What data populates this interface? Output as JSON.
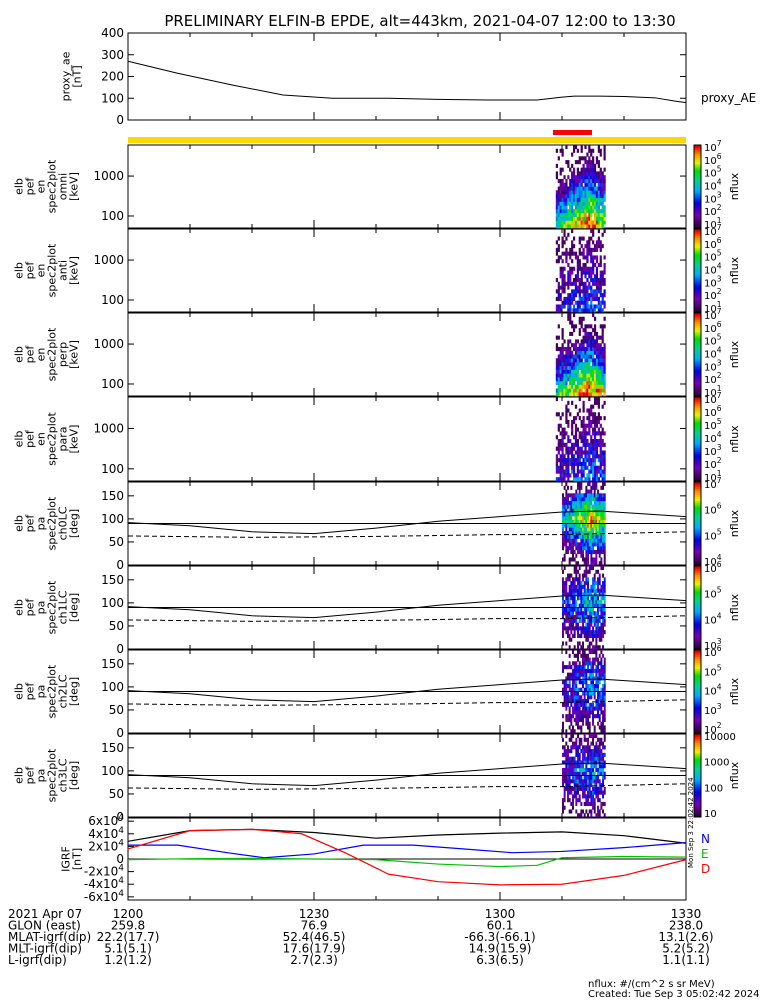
{
  "title": "PRELIMINARY ELFIN-B EPDE, alt=443km, 2021-04-07 12:00 to 13:30",
  "time_ticks": [
    "1200",
    "1230",
    "1300",
    "1330"
  ],
  "ephemeris": {
    "rows": [
      {
        "label": "2021 Apr 07",
        "values": [
          "1200",
          "1230",
          "1300",
          "1330"
        ]
      },
      {
        "label": "GLON (east)",
        "values": [
          "259.8",
          "76.9",
          "60.1",
          "238.0"
        ]
      },
      {
        "label": "MLAT-igrf(dip)",
        "values": [
          "22.2(17.7)",
          "52.4(46.5)",
          "-66.3(-66.1)",
          "13.1(2.6)"
        ]
      },
      {
        "label": "MLT-igrf(dip)",
        "values": [
          "5.1(5.1)",
          "17.6(17.9)",
          "14.9(15.9)",
          "5.2(5.2)"
        ]
      },
      {
        "label": "L-igrf(dip)",
        "values": [
          "1.2(1.2)",
          "2.7(2.3)",
          "6.3(6.5)",
          "1.1(1.1)"
        ]
      }
    ]
  },
  "footer": {
    "units": "nflux: #/(cm^2 s sr MeV)",
    "created": "Created: Tue Sep  3 05:02:42 2024"
  },
  "side_stamp": "Mon Sep  3 22:02:42 2024",
  "colors": {
    "orbit_bar": "#FFD700",
    "science_bar": "#FF0000",
    "igrf_total": "#000000",
    "igrf_N": "#0000FF",
    "igrf_E": "#00C000",
    "igrf_D": "#FF0000"
  },
  "chart_data": [
    {
      "id": "proxy_ae",
      "type": "line",
      "ylabel": [
        "proxy_ae",
        "[nT]"
      ],
      "yticks": [
        0,
        100,
        200,
        300,
        400
      ],
      "ylim": [
        0,
        400
      ],
      "legend": "proxy_AE",
      "series": [
        {
          "x": [
            0,
            8,
            17,
            25,
            33,
            42,
            50,
            58,
            66,
            70,
            72,
            76,
            80,
            85,
            88,
            90
          ],
          "y": [
            270,
            215,
            160,
            115,
            100,
            100,
            95,
            92,
            92,
            105,
            110,
            110,
            108,
            102,
            88,
            80
          ]
        }
      ]
    },
    {
      "id": "en_omni",
      "type": "heatmap",
      "ylabel": [
        "elb",
        "pef",
        "en",
        "spec2plot",
        "omni",
        "[keV]"
      ],
      "yticks": [
        100,
        1000
      ],
      "log": true,
      "colorbar": {
        "ticks": [
          "10^1",
          "10^2",
          "10^3",
          "10^4",
          "10^5",
          "10^6",
          "10^7"
        ],
        "label": "nflux"
      },
      "active": [
        69,
        77
      ],
      "intensity": 1.0
    },
    {
      "id": "en_anti",
      "type": "heatmap",
      "ylabel": [
        "elb",
        "pef",
        "en",
        "spec2plot",
        "anti",
        "[keV]"
      ],
      "yticks": [
        100,
        1000
      ],
      "log": true,
      "colorbar": {
        "ticks": [
          "10^1",
          "10^2",
          "10^3",
          "10^4",
          "10^5",
          "10^6",
          "10^7"
        ],
        "label": "nflux"
      },
      "active": [
        69,
        77
      ],
      "intensity": 0.35
    },
    {
      "id": "en_perp",
      "type": "heatmap",
      "ylabel": [
        "elb",
        "pef",
        "en",
        "spec2plot",
        "perp",
        "[keV]"
      ],
      "yticks": [
        100,
        1000
      ],
      "log": true,
      "colorbar": {
        "ticks": [
          "10^1",
          "10^2",
          "10^3",
          "10^4",
          "10^5",
          "10^6",
          "10^7"
        ],
        "label": "nflux"
      },
      "active": [
        69,
        77
      ],
      "intensity": 1.0
    },
    {
      "id": "en_para",
      "type": "heatmap",
      "ylabel": [
        "elb",
        "pef",
        "en",
        "spec2plot",
        "para",
        "[keV]"
      ],
      "yticks": [
        100,
        1000
      ],
      "log": true,
      "colorbar": {
        "ticks": [
          "10^1",
          "10^2",
          "10^3",
          "10^4",
          "10^5",
          "10^6",
          "10^7"
        ],
        "label": "nflux"
      },
      "active": [
        69,
        77
      ],
      "intensity": 0.4
    },
    {
      "id": "pa_ch0",
      "type": "heatmap",
      "ylabel": [
        "elb",
        "pef",
        "pa",
        "spec2plot",
        "ch0LC",
        "[deg]"
      ],
      "yticks": [
        0,
        50,
        100,
        150
      ],
      "ylim": [
        0,
        180
      ],
      "colorbar": {
        "ticks": [
          "10^4",
          "10^5",
          "10^6",
          "10^7"
        ],
        "label": "nflux"
      },
      "active": [
        70,
        77
      ],
      "intensity": 1.0,
      "lc_solid": true
    },
    {
      "id": "pa_ch1",
      "type": "heatmap",
      "ylabel": [
        "elb",
        "pef",
        "pa",
        "spec2plot",
        "ch1LC",
        "[deg]"
      ],
      "yticks": [
        0,
        50,
        100,
        150
      ],
      "ylim": [
        0,
        180
      ],
      "colorbar": {
        "ticks": [
          "10^3",
          "10^4",
          "10^5",
          "10^6"
        ],
        "label": "nflux"
      },
      "active": [
        70,
        77
      ],
      "intensity": 0.6,
      "lc_solid": true
    },
    {
      "id": "pa_ch2",
      "type": "heatmap",
      "ylabel": [
        "elb",
        "pef",
        "pa",
        "spec2plot",
        "ch2LC",
        "[deg]"
      ],
      "yticks": [
        0,
        50,
        100,
        150
      ],
      "ylim": [
        0,
        180
      ],
      "colorbar": {
        "ticks": [
          "10^2",
          "10^3",
          "10^4",
          "10^5",
          "10^6"
        ],
        "label": "nflux"
      },
      "active": [
        70,
        77
      ],
      "intensity": 0.5,
      "lc_solid": true
    },
    {
      "id": "pa_ch3",
      "type": "heatmap",
      "ylabel": [
        "elb",
        "pef",
        "pa",
        "spec2plot",
        "ch3LC",
        "[deg]"
      ],
      "yticks": [
        0,
        50,
        100,
        150
      ],
      "ylim": [
        0,
        180
      ],
      "colorbar": {
        "ticks": [
          "10",
          "100",
          "1000",
          "10000"
        ],
        "label": "nflux"
      },
      "active": [
        70,
        77
      ],
      "intensity": 0.5,
      "lc_solid": true
    },
    {
      "id": "igrf",
      "type": "line",
      "ylabel": [
        "IGRF",
        "[nT]"
      ],
      "yticks": [
        "-6x10^4",
        "-4x10^4",
        "-2x10^4",
        "0",
        "2x10^4",
        "4x10^4",
        "6x10^4"
      ],
      "ylim": [
        -65000,
        65000
      ],
      "legend": [
        "N",
        "E",
        "D"
      ],
      "series": [
        {
          "name": "total",
          "x": [
            0,
            10,
            20,
            30,
            40,
            50,
            60,
            70,
            80,
            90
          ],
          "y": [
            28000,
            45000,
            47000,
            42000,
            33000,
            38000,
            41000,
            43000,
            37000,
            25000
          ]
        },
        {
          "name": "N",
          "x": [
            0,
            8,
            16,
            22,
            30,
            38,
            46,
            54,
            62,
            70,
            80,
            90
          ],
          "y": [
            22000,
            22000,
            10000,
            2000,
            8000,
            22000,
            22000,
            16000,
            10000,
            12000,
            18000,
            26000
          ]
        },
        {
          "name": "E",
          "x": [
            0,
            10,
            20,
            30,
            40,
            50,
            60,
            66,
            70,
            80,
            90
          ],
          "y": [
            -1000,
            500,
            1000,
            0,
            -1000,
            -8000,
            -12000,
            -10000,
            2000,
            4000,
            3000
          ]
        },
        {
          "name": "D",
          "x": [
            0,
            10,
            20,
            28,
            35,
            42,
            50,
            60,
            70,
            80,
            90
          ],
          "y": [
            16000,
            45000,
            47000,
            40000,
            10000,
            -24000,
            -36000,
            -41000,
            -40000,
            -26000,
            -1000
          ]
        }
      ]
    }
  ]
}
